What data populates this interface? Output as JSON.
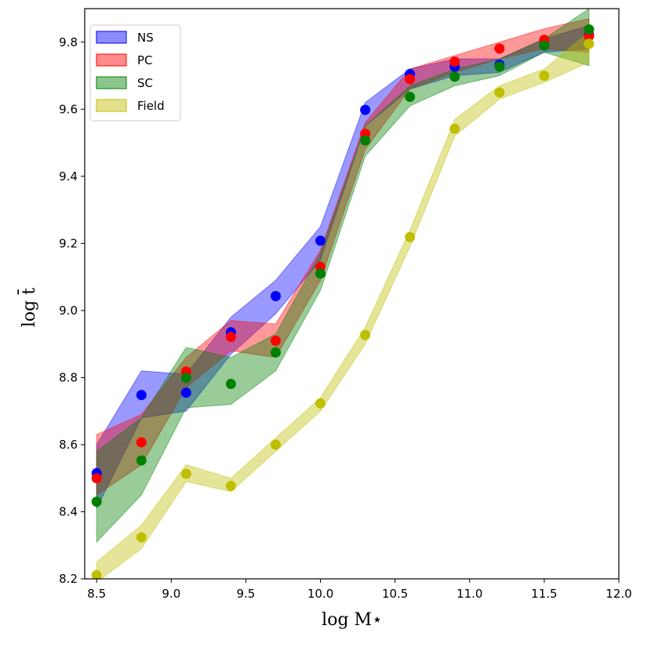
{
  "chart_data": {
    "type": "line",
    "title": "",
    "xlabel": "log M⋆",
    "ylabel": "log t̄",
    "xlim": [
      8.42,
      12.0
    ],
    "ylim": [
      8.2,
      9.9
    ],
    "xticks": [
      8.5,
      9.0,
      9.5,
      10.0,
      10.5,
      11.0,
      11.5,
      12.0
    ],
    "xtick_labels": [
      "8.5",
      "9.0",
      "9.5",
      "10.0",
      "10.5",
      "11.0",
      "11.5",
      "12.0"
    ],
    "yticks": [
      8.2,
      8.4,
      8.6,
      8.8,
      9.0,
      9.2,
      9.4,
      9.6,
      9.8
    ],
    "ytick_labels": [
      "8.2",
      "8.4",
      "8.6",
      "8.8",
      "9.0",
      "9.2",
      "9.4",
      "9.6",
      "9.8"
    ],
    "legend_position": "top-left",
    "series": [
      {
        "name": "NS",
        "color": "#0000ff",
        "x": [
          8.5,
          8.8,
          9.1,
          9.4,
          9.7,
          10.0,
          10.3,
          10.6,
          10.9,
          11.2,
          11.5,
          11.8
        ],
        "values": [
          8.515,
          8.748,
          8.755,
          8.935,
          9.043,
          9.208,
          9.598,
          9.705,
          9.727,
          9.733,
          9.79,
          9.822
        ],
        "lower": [
          8.41,
          8.68,
          8.7,
          8.87,
          8.99,
          9.15,
          9.55,
          9.66,
          9.7,
          9.71,
          9.77,
          9.78
        ],
        "upper": [
          8.6,
          8.82,
          8.81,
          8.98,
          9.09,
          9.25,
          9.62,
          9.72,
          9.75,
          9.75,
          9.81,
          9.85
        ]
      },
      {
        "name": "PC",
        "color": "#ff0000",
        "x": [
          8.5,
          8.8,
          9.1,
          9.4,
          9.7,
          10.0,
          10.3,
          10.6,
          10.9,
          11.2,
          11.5,
          11.8
        ],
        "values": [
          8.5,
          8.607,
          8.818,
          8.921,
          8.91,
          9.13,
          9.527,
          9.69,
          9.742,
          9.781,
          9.807,
          9.818
        ],
        "lower": [
          8.45,
          8.54,
          8.77,
          8.88,
          8.86,
          9.09,
          9.48,
          9.66,
          9.71,
          9.75,
          9.78,
          9.77
        ],
        "upper": [
          8.63,
          8.69,
          8.86,
          8.97,
          8.96,
          9.18,
          9.56,
          9.72,
          9.76,
          9.8,
          9.84,
          9.87
        ]
      },
      {
        "name": "SC",
        "color": "#008000",
        "x": [
          8.5,
          8.8,
          9.1,
          9.4,
          9.7,
          10.0,
          10.3,
          10.6,
          10.9,
          11.2,
          11.5,
          11.8
        ],
        "values": [
          8.43,
          8.553,
          8.799,
          8.781,
          8.875,
          9.11,
          9.507,
          9.637,
          9.697,
          9.727,
          9.79,
          9.838
        ],
        "lower": [
          8.31,
          8.45,
          8.71,
          8.72,
          8.82,
          9.06,
          9.46,
          9.61,
          9.67,
          9.7,
          9.77,
          9.73
        ],
        "upper": [
          8.58,
          8.68,
          8.89,
          8.86,
          8.93,
          9.17,
          9.55,
          9.67,
          9.72,
          9.75,
          9.81,
          9.9
        ]
      },
      {
        "name": "Field",
        "color": "#bfbf00",
        "x": [
          8.5,
          8.8,
          9.1,
          9.4,
          9.7,
          10.0,
          10.3,
          10.6,
          10.9,
          11.2,
          11.5,
          11.8
        ],
        "values": [
          8.211,
          8.324,
          8.513,
          8.477,
          8.6,
          8.723,
          8.927,
          9.219,
          9.542,
          9.65,
          9.7,
          9.795
        ],
        "lower": [
          8.19,
          8.29,
          8.49,
          8.46,
          8.58,
          8.7,
          8.9,
          9.19,
          9.52,
          9.63,
          9.68,
          9.74
        ],
        "upper": [
          8.25,
          8.36,
          8.54,
          8.5,
          8.62,
          8.74,
          8.95,
          9.24,
          9.57,
          9.67,
          9.72,
          9.83
        ]
      }
    ]
  }
}
